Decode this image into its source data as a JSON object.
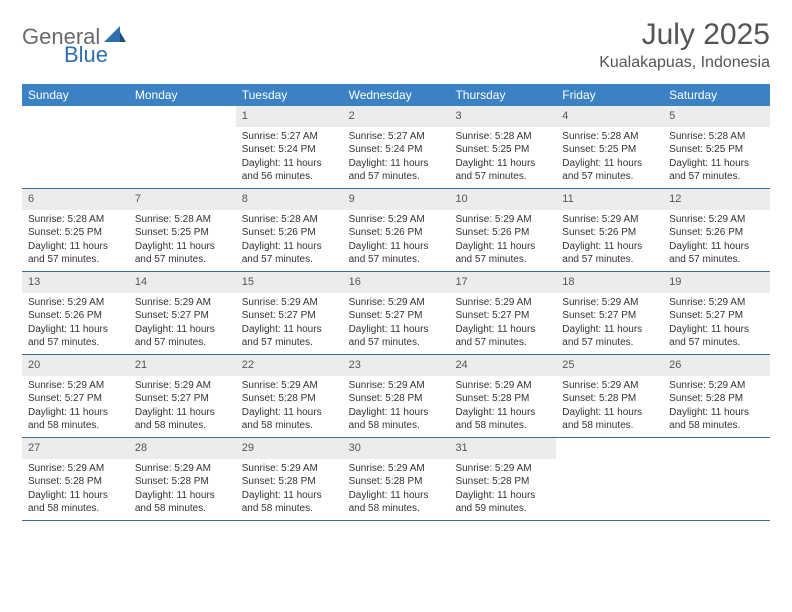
{
  "logo": {
    "text1": "General",
    "text2": "Blue"
  },
  "title": "July 2025",
  "location": "Kualakapuas, Indonesia",
  "colors": {
    "header_bg": "#3b82c4",
    "header_text": "#ffffff",
    "daynum_bg": "#ececec",
    "daynum_text": "#555555",
    "border": "#3b6fa0",
    "body_text": "#333333",
    "title_text": "#555555",
    "logo_gray": "#6a6a6a",
    "logo_blue": "#2f6fab"
  },
  "weekdays": [
    "Sunday",
    "Monday",
    "Tuesday",
    "Wednesday",
    "Thursday",
    "Friday",
    "Saturday"
  ],
  "weeks": [
    [
      {
        "n": "",
        "sr": "",
        "ss": "",
        "dl": ""
      },
      {
        "n": "",
        "sr": "",
        "ss": "",
        "dl": ""
      },
      {
        "n": "1",
        "sr": "Sunrise: 5:27 AM",
        "ss": "Sunset: 5:24 PM",
        "dl": "Daylight: 11 hours and 56 minutes."
      },
      {
        "n": "2",
        "sr": "Sunrise: 5:27 AM",
        "ss": "Sunset: 5:24 PM",
        "dl": "Daylight: 11 hours and 57 minutes."
      },
      {
        "n": "3",
        "sr": "Sunrise: 5:28 AM",
        "ss": "Sunset: 5:25 PM",
        "dl": "Daylight: 11 hours and 57 minutes."
      },
      {
        "n": "4",
        "sr": "Sunrise: 5:28 AM",
        "ss": "Sunset: 5:25 PM",
        "dl": "Daylight: 11 hours and 57 minutes."
      },
      {
        "n": "5",
        "sr": "Sunrise: 5:28 AM",
        "ss": "Sunset: 5:25 PM",
        "dl": "Daylight: 11 hours and 57 minutes."
      }
    ],
    [
      {
        "n": "6",
        "sr": "Sunrise: 5:28 AM",
        "ss": "Sunset: 5:25 PM",
        "dl": "Daylight: 11 hours and 57 minutes."
      },
      {
        "n": "7",
        "sr": "Sunrise: 5:28 AM",
        "ss": "Sunset: 5:25 PM",
        "dl": "Daylight: 11 hours and 57 minutes."
      },
      {
        "n": "8",
        "sr": "Sunrise: 5:28 AM",
        "ss": "Sunset: 5:26 PM",
        "dl": "Daylight: 11 hours and 57 minutes."
      },
      {
        "n": "9",
        "sr": "Sunrise: 5:29 AM",
        "ss": "Sunset: 5:26 PM",
        "dl": "Daylight: 11 hours and 57 minutes."
      },
      {
        "n": "10",
        "sr": "Sunrise: 5:29 AM",
        "ss": "Sunset: 5:26 PM",
        "dl": "Daylight: 11 hours and 57 minutes."
      },
      {
        "n": "11",
        "sr": "Sunrise: 5:29 AM",
        "ss": "Sunset: 5:26 PM",
        "dl": "Daylight: 11 hours and 57 minutes."
      },
      {
        "n": "12",
        "sr": "Sunrise: 5:29 AM",
        "ss": "Sunset: 5:26 PM",
        "dl": "Daylight: 11 hours and 57 minutes."
      }
    ],
    [
      {
        "n": "13",
        "sr": "Sunrise: 5:29 AM",
        "ss": "Sunset: 5:26 PM",
        "dl": "Daylight: 11 hours and 57 minutes."
      },
      {
        "n": "14",
        "sr": "Sunrise: 5:29 AM",
        "ss": "Sunset: 5:27 PM",
        "dl": "Daylight: 11 hours and 57 minutes."
      },
      {
        "n": "15",
        "sr": "Sunrise: 5:29 AM",
        "ss": "Sunset: 5:27 PM",
        "dl": "Daylight: 11 hours and 57 minutes."
      },
      {
        "n": "16",
        "sr": "Sunrise: 5:29 AM",
        "ss": "Sunset: 5:27 PM",
        "dl": "Daylight: 11 hours and 57 minutes."
      },
      {
        "n": "17",
        "sr": "Sunrise: 5:29 AM",
        "ss": "Sunset: 5:27 PM",
        "dl": "Daylight: 11 hours and 57 minutes."
      },
      {
        "n": "18",
        "sr": "Sunrise: 5:29 AM",
        "ss": "Sunset: 5:27 PM",
        "dl": "Daylight: 11 hours and 57 minutes."
      },
      {
        "n": "19",
        "sr": "Sunrise: 5:29 AM",
        "ss": "Sunset: 5:27 PM",
        "dl": "Daylight: 11 hours and 57 minutes."
      }
    ],
    [
      {
        "n": "20",
        "sr": "Sunrise: 5:29 AM",
        "ss": "Sunset: 5:27 PM",
        "dl": "Daylight: 11 hours and 58 minutes."
      },
      {
        "n": "21",
        "sr": "Sunrise: 5:29 AM",
        "ss": "Sunset: 5:27 PM",
        "dl": "Daylight: 11 hours and 58 minutes."
      },
      {
        "n": "22",
        "sr": "Sunrise: 5:29 AM",
        "ss": "Sunset: 5:28 PM",
        "dl": "Daylight: 11 hours and 58 minutes."
      },
      {
        "n": "23",
        "sr": "Sunrise: 5:29 AM",
        "ss": "Sunset: 5:28 PM",
        "dl": "Daylight: 11 hours and 58 minutes."
      },
      {
        "n": "24",
        "sr": "Sunrise: 5:29 AM",
        "ss": "Sunset: 5:28 PM",
        "dl": "Daylight: 11 hours and 58 minutes."
      },
      {
        "n": "25",
        "sr": "Sunrise: 5:29 AM",
        "ss": "Sunset: 5:28 PM",
        "dl": "Daylight: 11 hours and 58 minutes."
      },
      {
        "n": "26",
        "sr": "Sunrise: 5:29 AM",
        "ss": "Sunset: 5:28 PM",
        "dl": "Daylight: 11 hours and 58 minutes."
      }
    ],
    [
      {
        "n": "27",
        "sr": "Sunrise: 5:29 AM",
        "ss": "Sunset: 5:28 PM",
        "dl": "Daylight: 11 hours and 58 minutes."
      },
      {
        "n": "28",
        "sr": "Sunrise: 5:29 AM",
        "ss": "Sunset: 5:28 PM",
        "dl": "Daylight: 11 hours and 58 minutes."
      },
      {
        "n": "29",
        "sr": "Sunrise: 5:29 AM",
        "ss": "Sunset: 5:28 PM",
        "dl": "Daylight: 11 hours and 58 minutes."
      },
      {
        "n": "30",
        "sr": "Sunrise: 5:29 AM",
        "ss": "Sunset: 5:28 PM",
        "dl": "Daylight: 11 hours and 58 minutes."
      },
      {
        "n": "31",
        "sr": "Sunrise: 5:29 AM",
        "ss": "Sunset: 5:28 PM",
        "dl": "Daylight: 11 hours and 59 minutes."
      },
      {
        "n": "",
        "sr": "",
        "ss": "",
        "dl": ""
      },
      {
        "n": "",
        "sr": "",
        "ss": "",
        "dl": ""
      }
    ]
  ]
}
